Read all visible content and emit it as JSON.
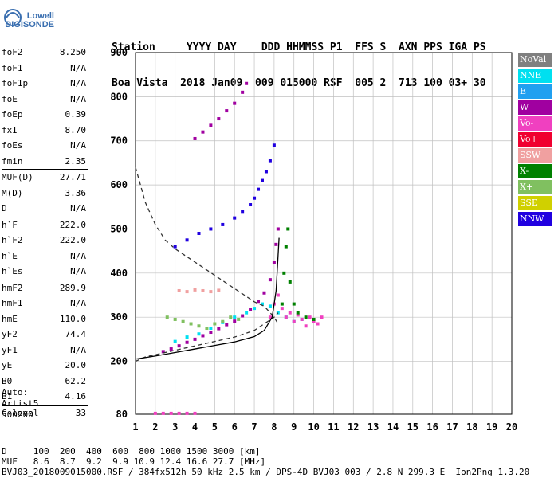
{
  "logo": {
    "line1": "Lowell",
    "line2": "DIGISONDE"
  },
  "header": {
    "line1": "Station     YYYY DAY    DDD HHMMSS P1  FFS S  AXN PPS IGA PS",
    "line2": "Boa Vista  2018 Jan09  009 015000 RSF  005 2  713 100 03+ 30"
  },
  "params": [
    {
      "k": "foF2",
      "v": "8.250"
    },
    {
      "k": "foF1",
      "v": "N/A"
    },
    {
      "k": "foF1p",
      "v": "N/A"
    },
    {
      "k": "foE",
      "v": "N/A"
    },
    {
      "k": "foEp",
      "v": "0.39"
    },
    {
      "k": "fxI",
      "v": "8.70"
    },
    {
      "k": "foEs",
      "v": "N/A"
    },
    {
      "k": "fmin",
      "v": "2.35"
    },
    {
      "sep": true
    },
    {
      "k": "MUF(D)",
      "v": "27.71"
    },
    {
      "k": "M(D)",
      "v": "3.36"
    },
    {
      "k": "D",
      "v": "N/A"
    },
    {
      "sep": true
    },
    {
      "k": "h`F",
      "v": "222.0"
    },
    {
      "k": "h`F2",
      "v": "222.0"
    },
    {
      "k": "h`E",
      "v": "N/A"
    },
    {
      "k": "h`Es",
      "v": "N/A"
    },
    {
      "sep": true
    },
    {
      "k": "hmF2",
      "v": "289.9"
    },
    {
      "k": "hmF1",
      "v": "N/A"
    },
    {
      "k": "hmE",
      "v": "110.0"
    },
    {
      "k": "yF2",
      "v": "74.4"
    },
    {
      "k": "yF1",
      "v": "N/A"
    },
    {
      "k": "yE",
      "v": "20.0"
    },
    {
      "k": "B0",
      "v": "62.2"
    },
    {
      "k": "B1",
      "v": "4.16"
    },
    {
      "sep": true
    },
    {
      "k": "C-level",
      "v": "33"
    },
    {
      "sep": true
    }
  ],
  "auto": {
    "line1": "Auto:",
    "line2": "Artist5",
    "line3": "500200"
  },
  "legend": [
    {
      "label": "NoVal",
      "color": "#808080"
    },
    {
      "label": "NNE",
      "color": "#00e0f0"
    },
    {
      "label": "E",
      "color": "#20a0f0"
    },
    {
      "label": "W",
      "color": "#a000a0"
    },
    {
      "label": "Vo-",
      "color": "#f040c0"
    },
    {
      "label": "Vo+",
      "color": "#f00030"
    },
    {
      "label": "SSW",
      "color": "#f0a0a0"
    },
    {
      "label": "X-",
      "color": "#008000"
    },
    {
      "label": "X+",
      "color": "#80c060"
    },
    {
      "label": "SSE",
      "color": "#d0d000"
    },
    {
      "label": "NNW",
      "color": "#2000e0"
    }
  ],
  "footer": {
    "line1": "D     100  200  400  600  800 1000 1500 3000 [km]",
    "line2": "MUF   8.6  8.7  9.2  9.9 10.9 12.4 16.6 27.7 [MHz]",
    "line3": "BVJ03_2018009015000.RSF / 384fx512h 50 kHz 2.5 km / DPS-4D BVJ03 003 / 2.8 N 299.3 E  Ion2Png 1.3.20"
  },
  "chart_data": {
    "type": "scatter",
    "xlim": [
      1,
      20
    ],
    "ylim": [
      80,
      900
    ],
    "xticks": [
      1,
      2,
      3,
      4,
      5,
      6,
      7,
      8,
      9,
      10,
      11,
      12,
      13,
      14,
      15,
      16,
      17,
      18,
      19,
      20
    ],
    "yticks": [
      80,
      200,
      300,
      400,
      500,
      600,
      700,
      800,
      900
    ],
    "grid": true,
    "series": [
      {
        "color": "#a000a0",
        "x": [
          2.4,
          2.8,
          3.2,
          3.6,
          4.0,
          4.4,
          4.8,
          5.2,
          5.6,
          6.0,
          6.4,
          6.8,
          7.2,
          7.5,
          7.8,
          8.0,
          8.1,
          8.2
        ],
        "y": [
          222,
          228,
          235,
          243,
          250,
          258,
          266,
          274,
          283,
          291,
          303,
          318,
          336,
          355,
          385,
          425,
          465,
          500
        ]
      },
      {
        "color": "#00e0f0",
        "x": [
          3.0,
          3.6,
          4.2,
          4.8,
          5.4,
          6.0,
          6.6,
          7.0,
          7.4,
          7.8,
          8.2,
          8.6,
          9.0,
          9.4
        ],
        "y": [
          245,
          255,
          262,
          275,
          288,
          300,
          310,
          320,
          330,
          325,
          310,
          300,
          290,
          295
        ]
      },
      {
        "color": "#f040c0",
        "x": [
          7.8,
          8.0,
          8.2,
          8.4,
          8.6,
          8.8,
          9.0,
          9.2,
          9.4,
          9.6,
          9.8,
          10.0,
          10.2,
          10.4
        ],
        "y": [
          300,
          330,
          350,
          320,
          300,
          310,
          290,
          305,
          295,
          280,
          300,
          290,
          285,
          300
        ]
      },
      {
        "color": "#008000",
        "x": [
          8.4,
          8.5,
          8.6,
          8.7,
          8.8,
          9.0,
          9.2,
          9.6,
          10.0
        ],
        "y": [
          330,
          400,
          460,
          500,
          380,
          330,
          310,
          300,
          295
        ]
      },
      {
        "color": "#2000e0",
        "x": [
          3.0,
          3.6,
          4.2,
          4.8,
          5.4,
          6.0,
          6.4,
          6.8,
          7.0,
          7.2,
          7.4,
          7.6,
          7.8,
          8.0
        ],
        "y": [
          460,
          475,
          490,
          500,
          510,
          525,
          540,
          555,
          570,
          590,
          610,
          630,
          655,
          690
        ]
      },
      {
        "color": "#a000a0",
        "x": [
          4.0,
          4.4,
          4.8,
          5.2,
          5.6,
          6.0,
          6.4,
          6.6
        ],
        "y": [
          705,
          720,
          735,
          750,
          768,
          785,
          810,
          830
        ]
      },
      {
        "color": "#80c060",
        "x": [
          2.6,
          3.0,
          3.4,
          3.8,
          4.2,
          4.6,
          5.0,
          5.4,
          5.8,
          6.2
        ],
        "y": [
          300,
          295,
          290,
          285,
          280,
          275,
          285,
          290,
          300,
          295
        ]
      },
      {
        "color": "#f040c0",
        "x": [
          2.0,
          2.4,
          2.8,
          3.2,
          3.6,
          4.0
        ],
        "y": [
          82,
          82,
          82,
          82,
          82,
          82
        ]
      },
      {
        "color": "#f0a0a0",
        "x": [
          3.2,
          3.6,
          4.0,
          4.4,
          4.8,
          5.2
        ],
        "y": [
          360,
          358,
          362,
          360,
          358,
          361
        ]
      }
    ],
    "profile_curve": {
      "x": [
        1.0,
        2.0,
        3.0,
        4.0,
        5.0,
        6.0,
        7.0,
        7.5,
        7.9,
        8.1,
        8.25
      ],
      "y": [
        205,
        212,
        220,
        228,
        236,
        244,
        256,
        270,
        300,
        360,
        480
      ]
    },
    "muf_curve": {
      "x": [
        1.0,
        1.5,
        2.0,
        2.5,
        3.0,
        3.5,
        4.0,
        4.5,
        5.0,
        5.5,
        6.0,
        6.5,
        7.0,
        7.5,
        8.0,
        8.2
      ],
      "y": [
        640,
        560,
        510,
        475,
        455,
        440,
        425,
        410,
        395,
        380,
        365,
        350,
        335,
        325,
        300,
        285
      ]
    },
    "dashed_lower": {
      "x": [
        1.0,
        1.5,
        2.0,
        3.0,
        4.0,
        5.0,
        6.0,
        7.0,
        7.5,
        8.0,
        8.2
      ],
      "y": [
        200,
        210,
        215,
        225,
        235,
        245,
        255,
        270,
        285,
        300,
        310
      ]
    }
  }
}
